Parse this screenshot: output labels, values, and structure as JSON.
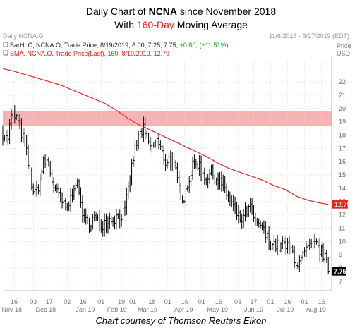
{
  "titles": {
    "line1_prefix": "Daily Chart of ",
    "line1_ticker": "NCNA",
    "line1_suffix": " since November 2018",
    "line2_prefix": "With ",
    "line2_accent": "160-Day",
    "line2_suffix": " Moving Average"
  },
  "header": {
    "left_label": "Daily NCNA.O",
    "date_range": "11/6/2018 - 8/27/2019 (EDT)",
    "price_label": "Price",
    "currency_label": "USD"
  },
  "legend": {
    "bar_prefix": "BarHLC, NCNA.O, Trade Price, 8/19/2019, 8.00, 7.25, 7.75, ",
    "bar_change": "+0.80, (+11.51%),",
    "sma_text": "SMA, NCNA.O, Trade Price(Last),  160, 8/19/2019, 12.79"
  },
  "caption": "Chart courtesy of Thomson Reuters Eikon",
  "colors": {
    "price_bars": "#000000",
    "sma_line": "#e8231f",
    "resistance_band": "#f6b3b3",
    "change_positive": "#1a9a1a",
    "accent": "#e8231f"
  },
  "chart_data": {
    "type": "line",
    "ylim": [
      6.3,
      23.6
    ],
    "y_ticks": [
      7,
      8,
      9,
      10,
      11,
      12,
      13,
      14,
      15,
      16,
      17,
      18,
      19,
      20,
      21,
      22
    ],
    "x_day_ticks": [
      {
        "label": "16",
        "day": 10
      },
      {
        "label": "03",
        "day": 27
      },
      {
        "label": "17",
        "day": 41
      },
      {
        "label": "02",
        "day": 57
      },
      {
        "label": "16",
        "day": 71
      },
      {
        "label": "01",
        "day": 87
      },
      {
        "label": "19",
        "day": 105
      },
      {
        "label": "01",
        "day": 115
      },
      {
        "label": "18",
        "day": 132
      },
      {
        "label": "01",
        "day": 146
      },
      {
        "label": "16",
        "day": 161
      },
      {
        "label": "01",
        "day": 176
      },
      {
        "label": "16",
        "day": 191
      },
      {
        "label": "03",
        "day": 208
      },
      {
        "label": "17",
        "day": 222
      },
      {
        "label": "01",
        "day": 237
      },
      {
        "label": "16",
        "day": 252
      },
      {
        "label": "01",
        "day": 267
      },
      {
        "label": "16",
        "day": 282
      }
    ],
    "x_month_labels": [
      {
        "label": "Nov 18",
        "day": 8
      },
      {
        "label": "Dec 18",
        "day": 38
      },
      {
        "label": "Jan 19",
        "day": 73
      },
      {
        "label": "Feb 19",
        "day": 101
      },
      {
        "label": "Mar 19",
        "day": 128
      },
      {
        "label": "Apr 19",
        "day": 160
      },
      {
        "label": "May 19",
        "day": 190
      },
      {
        "label": "Jun 19",
        "day": 222
      },
      {
        "label": "Jul 19",
        "day": 250
      },
      {
        "label": "Aug 19",
        "day": 277
      }
    ],
    "x_range_days": [
      0,
      291
    ],
    "resistance_band": [
      18.7,
      19.8
    ],
    "last_price": 7.75,
    "last_price_label": "7.75",
    "sma_last": 12.79,
    "sma_last_label": "12.79",
    "price_anchors": [
      [
        0,
        18.2
      ],
      [
        4,
        17.6
      ],
      [
        8,
        19.6
      ],
      [
        12,
        19.3
      ],
      [
        16,
        18.3
      ],
      [
        20,
        17.2
      ],
      [
        24,
        15.0
      ],
      [
        28,
        13.4
      ],
      [
        32,
        14.3
      ],
      [
        36,
        15.9
      ],
      [
        40,
        16.0
      ],
      [
        44,
        14.4
      ],
      [
        48,
        13.6
      ],
      [
        52,
        13.0
      ],
      [
        56,
        12.3
      ],
      [
        60,
        13.2
      ],
      [
        64,
        14.7
      ],
      [
        68,
        13.4
      ],
      [
        72,
        11.6
      ],
      [
        76,
        11.2
      ],
      [
        80,
        11.8
      ],
      [
        84,
        11.5
      ],
      [
        88,
        11.3
      ],
      [
        92,
        11.6
      ],
      [
        96,
        11.7
      ],
      [
        100,
        11.8
      ],
      [
        104,
        11.9
      ],
      [
        108,
        12.2
      ],
      [
        112,
        14.5
      ],
      [
        116,
        16.6
      ],
      [
        120,
        17.8
      ],
      [
        124,
        18.5
      ],
      [
        128,
        17.5
      ],
      [
        132,
        17.0
      ],
      [
        136,
        17.7
      ],
      [
        140,
        16.8
      ],
      [
        144,
        16.0
      ],
      [
        148,
        16.3
      ],
      [
        152,
        15.5
      ],
      [
        156,
        14.0
      ],
      [
        160,
        13.2
      ],
      [
        164,
        14.5
      ],
      [
        168,
        15.6
      ],
      [
        172,
        16.0
      ],
      [
        176,
        15.3
      ],
      [
        180,
        14.7
      ],
      [
        184,
        15.2
      ],
      [
        188,
        14.8
      ],
      [
        192,
        14.5
      ],
      [
        196,
        14.0
      ],
      [
        200,
        13.2
      ],
      [
        204,
        12.6
      ],
      [
        208,
        11.8
      ],
      [
        212,
        11.6
      ],
      [
        216,
        12.3
      ],
      [
        220,
        12.5
      ],
      [
        224,
        11.0
      ],
      [
        228,
        11.3
      ],
      [
        232,
        10.5
      ],
      [
        236,
        10.0
      ],
      [
        240,
        9.8
      ],
      [
        244,
        9.6
      ],
      [
        248,
        9.8
      ],
      [
        252,
        9.5
      ],
      [
        256,
        9.3
      ],
      [
        260,
        8.3
      ],
      [
        264,
        8.5
      ],
      [
        268,
        9.3
      ],
      [
        272,
        9.5
      ],
      [
        276,
        9.8
      ],
      [
        280,
        9.4
      ],
      [
        284,
        9.0
      ],
      [
        288,
        7.75
      ]
    ],
    "sma_anchors": [
      [
        0,
        23.0
      ],
      [
        10,
        22.8
      ],
      [
        30,
        22.3
      ],
      [
        50,
        21.8
      ],
      [
        70,
        21.1
      ],
      [
        90,
        20.4
      ],
      [
        100,
        19.9
      ],
      [
        110,
        19.3
      ],
      [
        120,
        18.8
      ],
      [
        130,
        18.4
      ],
      [
        140,
        18.0
      ],
      [
        150,
        17.6
      ],
      [
        160,
        17.2
      ],
      [
        170,
        16.8
      ],
      [
        180,
        16.4
      ],
      [
        190,
        15.9
      ],
      [
        200,
        15.5
      ],
      [
        210,
        15.2
      ],
      [
        220,
        14.9
      ],
      [
        230,
        14.6
      ],
      [
        240,
        14.2
      ],
      [
        250,
        13.9
      ],
      [
        260,
        13.4
      ],
      [
        270,
        13.1
      ],
      [
        280,
        12.9
      ],
      [
        288,
        12.79
      ]
    ]
  }
}
